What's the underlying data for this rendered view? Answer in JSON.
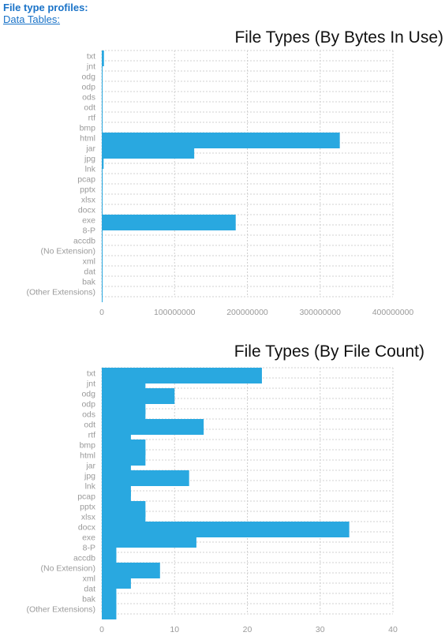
{
  "header": {
    "title": "File type profiles:",
    "link": "Data Tables:"
  },
  "colors": {
    "bar": "#29a8e0"
  },
  "chart_data": [
    {
      "type": "bar",
      "orientation": "horizontal",
      "title": "File Types (By Bytes In Use)",
      "categories": [
        "txt",
        "jnt",
        "odg",
        "odp",
        "ods",
        "odt",
        "rtf",
        "bmp",
        "html",
        "jar",
        "jpg",
        "lnk",
        "pcap",
        "pptx",
        "xlsx",
        "docx",
        "exe",
        "8-P",
        "accdb",
        "(No Extension)",
        "xml",
        "dat",
        "bak",
        "(Other Extensions)"
      ],
      "values": [
        3000000,
        300000,
        300000,
        200000,
        200000,
        200000,
        200000,
        200000,
        327000000,
        127000000,
        2500000,
        300000,
        1200000,
        200000,
        200000,
        300000,
        184000000,
        300000,
        800000,
        200000,
        200000,
        200000,
        200000,
        200000
      ],
      "xlim": [
        0,
        400000000
      ],
      "xticks": [
        0,
        100000000,
        200000000,
        300000000,
        400000000
      ],
      "xtick_labels": [
        "0",
        "100000000",
        "200000000",
        "300000000",
        "400000000"
      ],
      "grid": true
    },
    {
      "type": "bar",
      "orientation": "horizontal",
      "title": "File Types (By File Count)",
      "categories": [
        "txt",
        "jnt",
        "odg",
        "odp",
        "ods",
        "odt",
        "rtf",
        "bmp",
        "html",
        "jar",
        "jpg",
        "lnk",
        "pcap",
        "pptx",
        "xlsx",
        "docx",
        "exe",
        "8-P",
        "accdb",
        "(No Extension)",
        "xml",
        "dat",
        "bak",
        "(Other Extensions)"
      ],
      "values": [
        22,
        6,
        10,
        6,
        6,
        14,
        4,
        6,
        6,
        4,
        12,
        4,
        4,
        6,
        6,
        34,
        13,
        2,
        2,
        8,
        4,
        2,
        2,
        2
      ],
      "xlim": [
        0,
        40
      ],
      "xticks": [
        0,
        10,
        20,
        30,
        40
      ],
      "xtick_labels": [
        "0",
        "10",
        "20",
        "30",
        "40"
      ],
      "grid": true
    }
  ]
}
